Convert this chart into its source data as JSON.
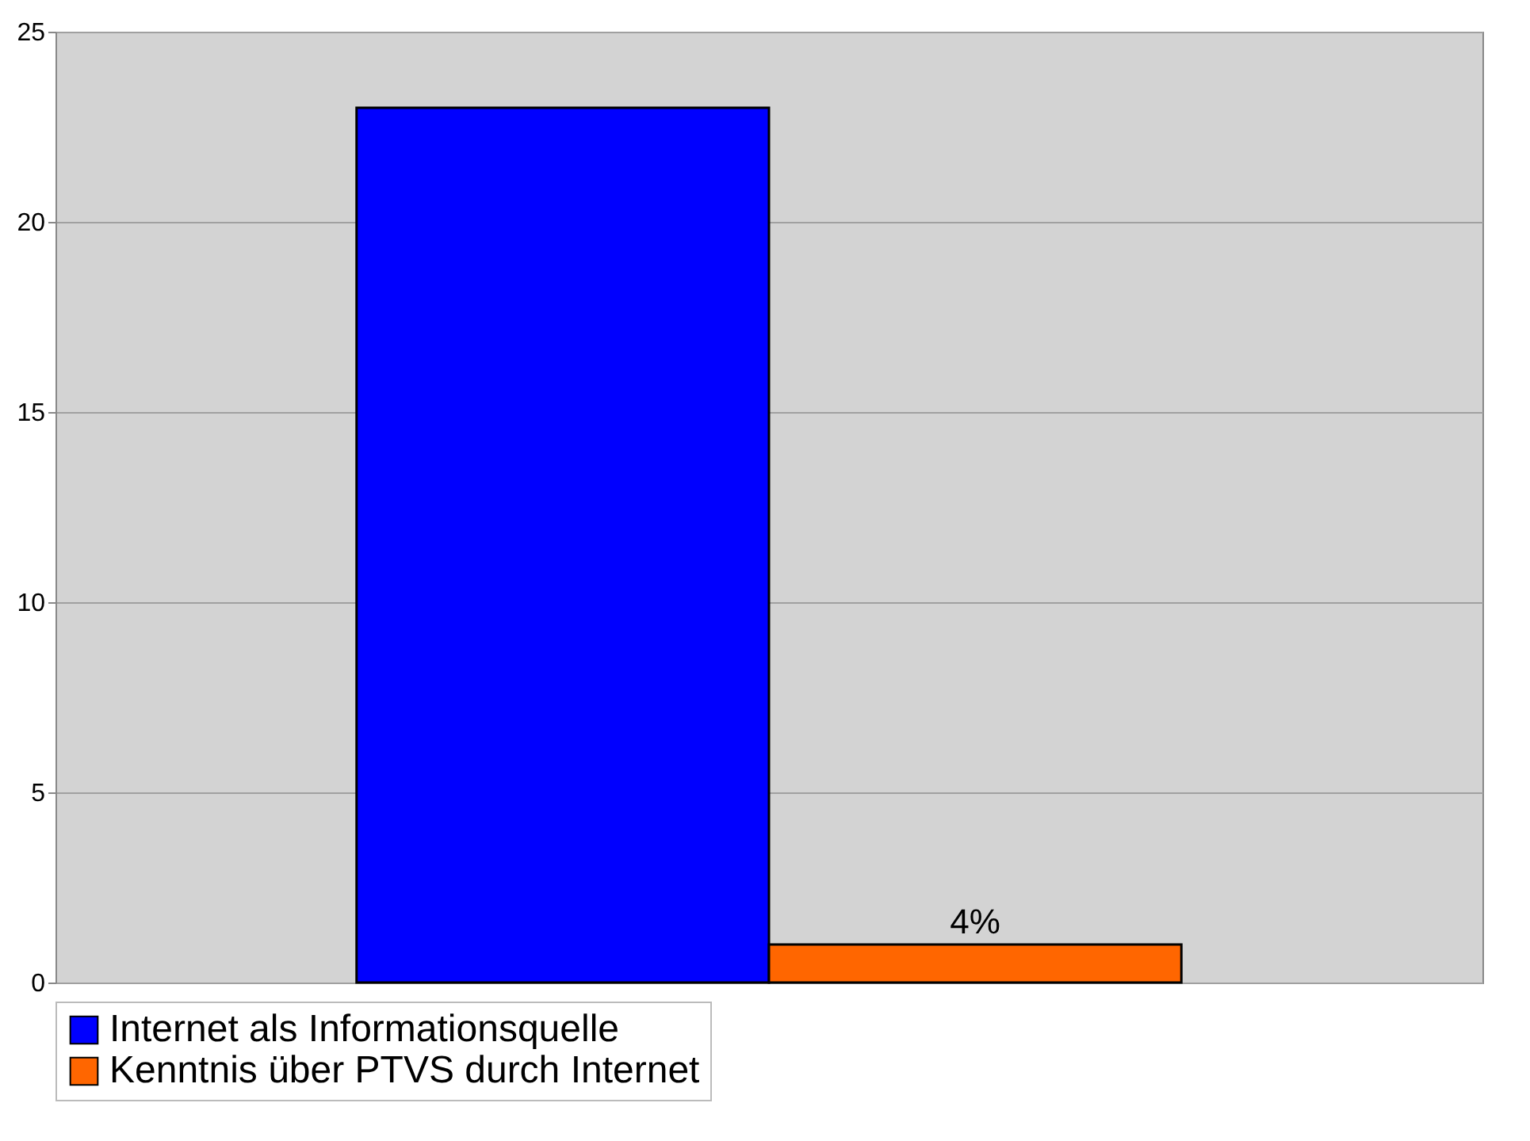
{
  "chart_data": {
    "type": "bar",
    "categories": [
      null
    ],
    "series": [
      {
        "name": "Internet als Informationsquelle",
        "color": "#0000ff",
        "values": [
          23
        ]
      },
      {
        "name": "Kenntnis über PTVS durch Internet",
        "color": "#ff6600",
        "values": [
          1
        ]
      }
    ],
    "annotations": [
      {
        "text": "4%",
        "y": 1
      }
    ],
    "ylim": [
      0,
      25
    ],
    "yticks": [
      0,
      5,
      10,
      15,
      20,
      25
    ],
    "grid": "y",
    "legend": "bottom left"
  }
}
